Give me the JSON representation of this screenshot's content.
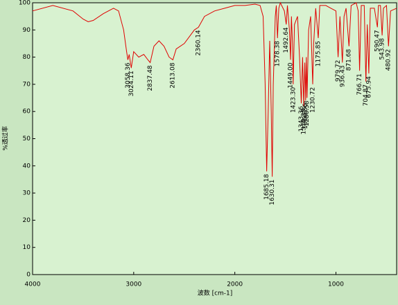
{
  "chart_data": {
    "type": "line",
    "x_label": "波数 [cm-1]",
    "y_label": "%透过率",
    "xlim": [
      4000,
      400
    ],
    "xticks": [
      4000,
      3000,
      2000,
      1000
    ],
    "ylim": [
      0,
      100
    ],
    "yticks": [
      0,
      10,
      20,
      30,
      40,
      50,
      60,
      70,
      80,
      90,
      100
    ],
    "series": [
      {
        "color": "#e00000",
        "x": [
          4000,
          3800,
          3600,
          3500,
          3450,
          3400,
          3300,
          3200,
          3150,
          3100,
          3070,
          3058,
          3045,
          3024,
          3000,
          2950,
          2900,
          2860,
          2837,
          2800,
          2750,
          2700,
          2650,
          2613,
          2580,
          2500,
          2400,
          2360,
          2300,
          2200,
          2100,
          2000,
          1900,
          1800,
          1750,
          1720,
          1700,
          1685,
          1670,
          1655,
          1640,
          1630,
          1620,
          1600,
          1590,
          1578,
          1565,
          1550,
          1510,
          1492,
          1480,
          1460,
          1449,
          1440,
          1430,
          1423,
          1410,
          1380,
          1360,
          1343,
          1330,
          1318,
          1308,
          1300,
          1293,
          1286,
          1270,
          1250,
          1230,
          1220,
          1200,
          1175,
          1160,
          1100,
          1050,
          1000,
          979,
          960,
          936,
          920,
          900,
          871,
          850,
          800,
          780,
          766,
          750,
          720,
          704,
          690,
          675,
          660,
          620,
          590,
          580,
          560,
          543,
          530,
          500,
          480,
          460,
          400
        ],
        "values": [
          97,
          99,
          97,
          94,
          93,
          93.5,
          96,
          98,
          97,
          90,
          82,
          79,
          81,
          76,
          82,
          80,
          81,
          79,
          78,
          84,
          86,
          84,
          80,
          79,
          83,
          85,
          90,
          91,
          95,
          97,
          98,
          99,
          99,
          99.5,
          99,
          95,
          70,
          38,
          60,
          86,
          60,
          36,
          70,
          95,
          99,
          87,
          98,
          100,
          97,
          92,
          99,
          90,
          79,
          95,
          85,
          70,
          92,
          95,
          80,
          63,
          80,
          62,
          78,
          64,
          80,
          65,
          90,
          95,
          70,
          85,
          98,
          87,
          99,
          99,
          98,
          97,
          80,
          95,
          78,
          95,
          98,
          84,
          99,
          100,
          97,
          75,
          99,
          99,
          71,
          92,
          74,
          98,
          98,
          91,
          99,
          99,
          88,
          98,
          99,
          84,
          97,
          98
        ]
      }
    ],
    "peaks": [
      {
        "x": 3058.36,
        "y": 79,
        "label": "3058.36"
      },
      {
        "x": 3024.11,
        "y": 76,
        "label": "3024.11"
      },
      {
        "x": 2837.48,
        "y": 78,
        "label": "2837.48"
      },
      {
        "x": 2613.08,
        "y": 79,
        "label": "2613.08"
      },
      {
        "x": 2360.14,
        "y": 91,
        "label": "2360.14"
      },
      {
        "x": 1685.18,
        "y": 38,
        "label": "1685.18"
      },
      {
        "x": 1630.31,
        "y": 36,
        "label": "1630.31"
      },
      {
        "x": 1578.38,
        "y": 87,
        "label": "1578.38"
      },
      {
        "x": 1492.64,
        "y": 92,
        "label": "1492.64"
      },
      {
        "x": 1449.0,
        "y": 79,
        "label": "1449.00"
      },
      {
        "x": 1423.3,
        "y": 70,
        "label": "1423.30"
      },
      {
        "x": 1343.36,
        "y": 63,
        "label": "1343.36"
      },
      {
        "x": 1318.38,
        "y": 62,
        "label": "1318.38"
      },
      {
        "x": 1300.86,
        "y": 64,
        "label": "1300.86"
      },
      {
        "x": 1286.58,
        "y": 65,
        "label": "1286.58"
      },
      {
        "x": 1230.72,
        "y": 70,
        "label": "1230.72"
      },
      {
        "x": 1175.85,
        "y": 87,
        "label": "1175.85"
      },
      {
        "x": 979.72,
        "y": 80,
        "label": "979.72"
      },
      {
        "x": 936.43,
        "y": 78,
        "label": "936.43"
      },
      {
        "x": 871.68,
        "y": 84,
        "label": "871.68"
      },
      {
        "x": 766.71,
        "y": 75,
        "label": "766.71"
      },
      {
        "x": 704.87,
        "y": 71,
        "label": "704.87"
      },
      {
        "x": 675.94,
        "y": 74,
        "label": "675.94"
      },
      {
        "x": 590.47,
        "y": 91,
        "label": "590.47"
      },
      {
        "x": 543.98,
        "y": 88,
        "label": "543.98"
      },
      {
        "x": 480.92,
        "y": 84,
        "label": "480.92"
      }
    ]
  }
}
